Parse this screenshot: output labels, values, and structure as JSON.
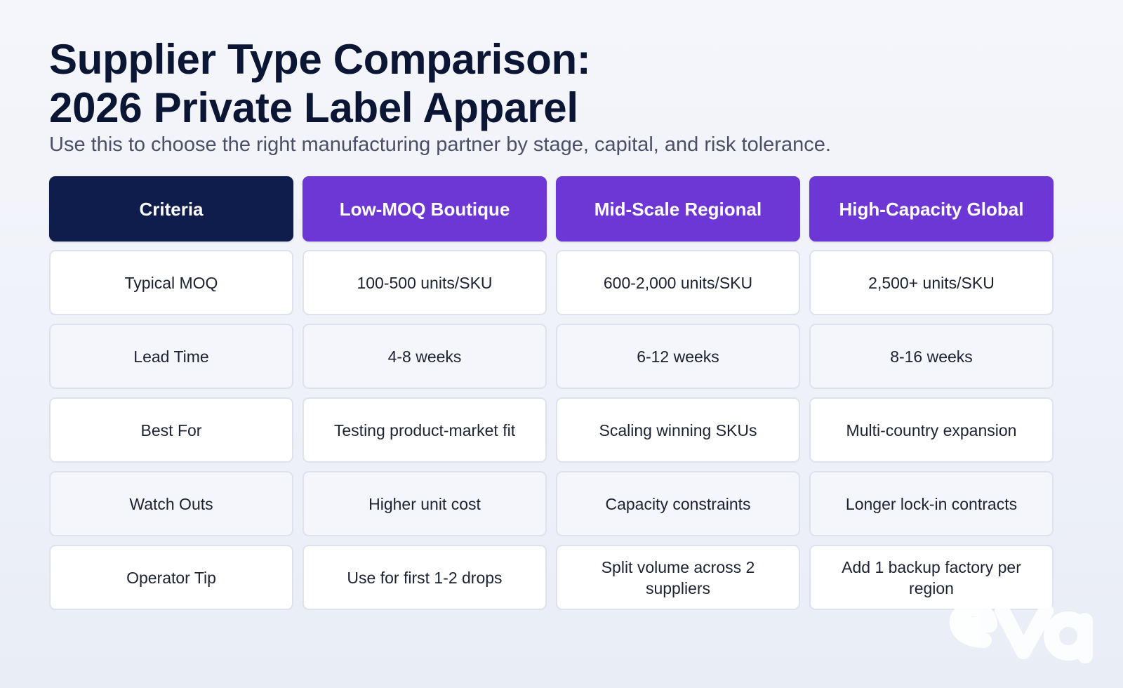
{
  "title_line1": "Supplier Type Comparison:",
  "title_line2": "2026 Private Label Apparel",
  "subtitle": "Use this to choose the right manufacturing partner by stage, capital, and risk tolerance.",
  "colors": {
    "criteria_header": "#0f1d4d",
    "supplier_header": "#6d37d6",
    "cell_white": "#ffffff",
    "cell_alt": "#f4f6fc"
  },
  "table": {
    "headers": [
      "Criteria",
      "Low-MOQ Boutique",
      "Mid-Scale Regional",
      "High-Capacity Global"
    ],
    "rows": [
      [
        "Typical MOQ",
        "100-500 units/SKU",
        "600-2,000 units/SKU",
        "2,500+ units/SKU"
      ],
      [
        "Lead Time",
        "4-8 weeks",
        "6-12 weeks",
        "8-16 weeks"
      ],
      [
        "Best For",
        "Testing product-market fit",
        "Scaling winning SKUs",
        "Multi-country expansion"
      ],
      [
        "Watch Outs",
        "Higher unit cost",
        "Capacity constraints",
        "Longer lock-in contracts"
      ],
      [
        "Operator Tip",
        "Use for first 1-2 drops",
        "Split volume across 2 suppliers",
        "Add 1 backup factory per region"
      ]
    ]
  },
  "watermark": "eva-logo-icon"
}
